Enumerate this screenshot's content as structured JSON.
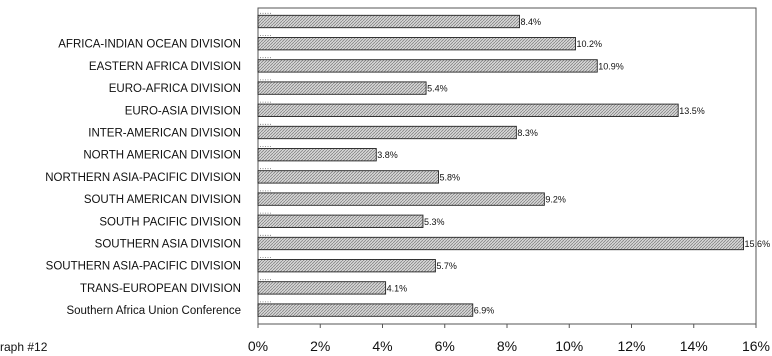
{
  "chart_data": {
    "type": "bar",
    "orientation": "horizontal",
    "title": "",
    "xlabel": "",
    "ylabel": "",
    "categories": [
      "",
      "AFRICA-INDIAN OCEAN DIVISION",
      "EASTERN AFRICA DIVISION",
      "EURO-AFRICA DIVISION",
      "EURO-ASIA DIVISION",
      "INTER-AMERICAN DIVISION",
      "NORTH AMERICAN DIVISION",
      "NORTHERN ASIA-PACIFIC DIVISION",
      "SOUTH AMERICAN DIVISION",
      "SOUTH PACIFIC DIVISION",
      "SOUTHERN ASIA DIVISION",
      "SOUTHERN ASIA-PACIFIC DIVISION",
      "TRANS-EUROPEAN DIVISION",
      "Southern Africa Union Conference"
    ],
    "values": [
      8.4,
      10.2,
      10.9,
      5.4,
      13.5,
      8.3,
      3.8,
      5.8,
      9.2,
      5.3,
      15.6,
      5.7,
      4.1,
      6.9
    ],
    "data_labels": [
      "8.4%",
      "10.2%",
      "10.9%",
      "5.4%",
      "13.5%",
      "8.3%",
      "3.8%",
      "5.8%",
      "9.2%",
      "5.3%",
      "15.6%",
      "5.7%",
      "4.1%",
      "6.9%"
    ],
    "xlim": [
      0,
      16
    ],
    "x_ticks": [
      0,
      2,
      4,
      6,
      8,
      10,
      12,
      14,
      16
    ],
    "x_tick_labels": [
      "0%",
      "2%",
      "4%",
      "6%",
      "8%",
      "10%",
      "12%",
      "14%",
      "16%"
    ],
    "grid": false,
    "legend": "none",
    "bar_color": "#c8c8c8",
    "bar_pattern": "hatched"
  },
  "footer_text": "raph #12"
}
